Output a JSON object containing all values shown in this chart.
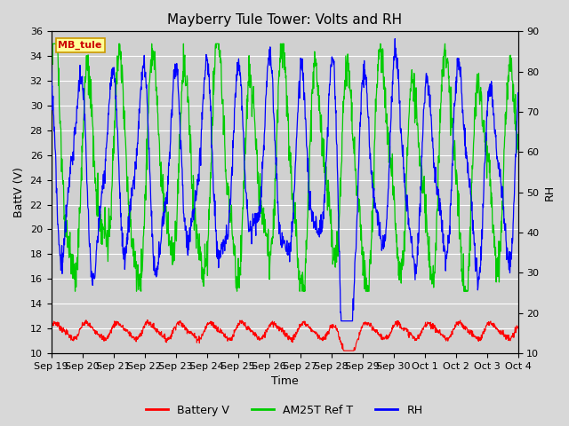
{
  "title": "Mayberry Tule Tower: Volts and RH",
  "xlabel": "Time",
  "ylabel_left": "BattV (V)",
  "ylabel_right": "RH",
  "xlim_start": 0,
  "xlim_end": 15,
  "ylim_left": [
    10,
    36
  ],
  "ylim_right": [
    10,
    90
  ],
  "yticks_left": [
    10,
    12,
    14,
    16,
    18,
    20,
    22,
    24,
    26,
    28,
    30,
    32,
    34,
    36
  ],
  "yticks_right": [
    10,
    20,
    30,
    40,
    50,
    60,
    70,
    80,
    90
  ],
  "xtick_labels": [
    "Sep 19",
    "Sep 20",
    "Sep 21",
    "Sep 22",
    "Sep 23",
    "Sep 24",
    "Sep 25",
    "Sep 26",
    "Sep 27",
    "Sep 28",
    "Sep 29",
    "Sep 30",
    "Oct 1",
    "Oct 2",
    "Oct 3",
    "Oct 4"
  ],
  "battery_color": "#ff0000",
  "green_color": "#00cc00",
  "blue_color": "#0000ff",
  "background_color": "#d8d8d8",
  "plot_bg_color": "#d0d0d0",
  "grid_color": "#ffffff",
  "label_box_color": "#ffff99",
  "label_box_edge": "#cc9900",
  "label_text": "MB_tule",
  "legend_labels": [
    "Battery V",
    "AM25T Ref T",
    "RH"
  ],
  "title_fontsize": 11,
  "axis_fontsize": 9,
  "tick_fontsize": 8
}
